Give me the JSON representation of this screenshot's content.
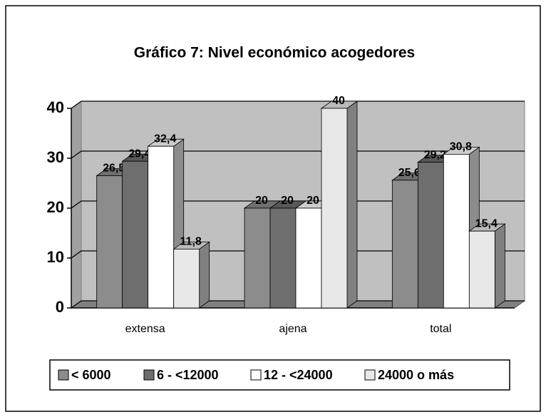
{
  "chart_data": {
    "type": "bar3d",
    "title": "Gráfico 7: Nivel económico acogedores",
    "categories": [
      "extensa",
      "ajena",
      "total"
    ],
    "series": [
      {
        "name": "< 6000",
        "color": "#8c8c8c",
        "values": [
          26.5,
          20,
          25.6
        ],
        "value_labels": [
          "26,5",
          "20",
          "25,6"
        ]
      },
      {
        "name": "6 - <12000",
        "color": "#6e6e6e",
        "values": [
          29.4,
          20,
          29.2
        ],
        "value_labels": [
          "29,4",
          "20",
          "29,2"
        ]
      },
      {
        "name": "12 - <24000",
        "color": "#ffffff",
        "values": [
          32.4,
          20,
          30.8
        ],
        "value_labels": [
          "32,4",
          "20",
          "30,8"
        ]
      },
      {
        "name": "24000 o más",
        "color": "#e8e8e8",
        "values": [
          11.8,
          40,
          15.4
        ],
        "value_labels": [
          "11,8",
          "40",
          "15,4"
        ]
      }
    ],
    "ylim": [
      0,
      40
    ],
    "yticks": [
      0,
      10,
      20,
      30,
      40
    ],
    "grid": true
  }
}
